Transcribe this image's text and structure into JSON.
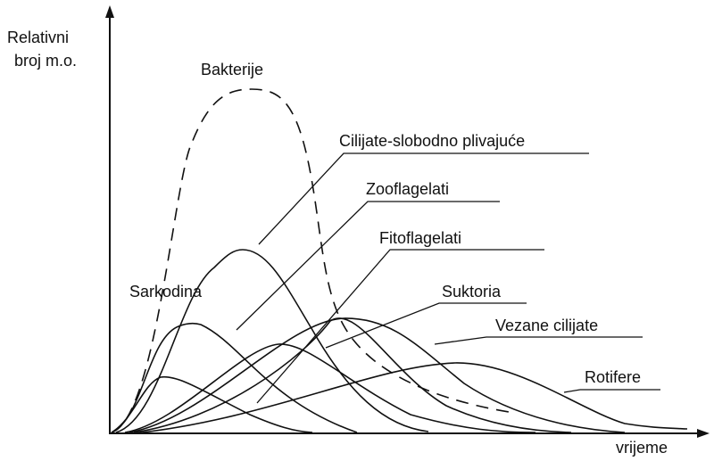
{
  "axes": {
    "y_label_line1": "Relativni",
    "y_label_line2": "broj m.o.",
    "x_label": "vrijeme"
  },
  "labels": {
    "bakterije": "Bakterije",
    "cilijate": "Cilijate-slobodno plivajuće",
    "zooflagelati": "Zooflagelati",
    "fitoflagelati": "Fitoflagelati",
    "suktoria": "Suktoria",
    "vezane": "Vezane cilijate",
    "rotifere": "Rotifere",
    "sarkodina": "Sarkodina"
  }
}
